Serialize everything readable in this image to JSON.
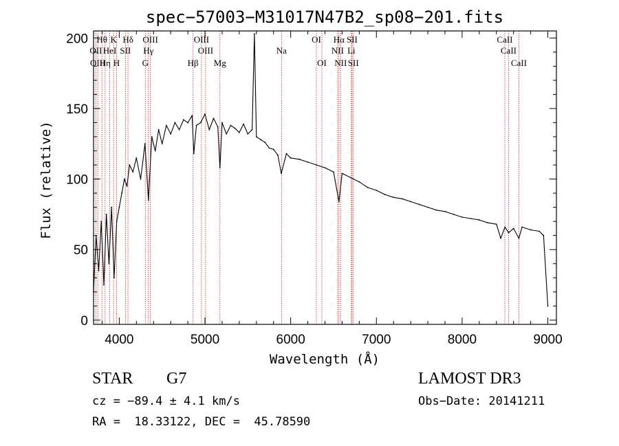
{
  "chart_data": {
    "type": "line",
    "title": "spec−57003−M31017N47B2_sp08−201.fits",
    "xlabel": "Wavelength (Å)",
    "ylabel": "Flux (relative)",
    "xlim": [
      3700,
      9100
    ],
    "ylim": [
      -3,
      205
    ],
    "xticks": [
      4000,
      5000,
      6000,
      7000,
      8000,
      9000
    ],
    "xtick_labels": [
      "4000",
      "5000",
      "6000",
      "7000",
      "8000",
      "9000"
    ],
    "yticks": [
      0,
      50,
      100,
      150,
      200
    ],
    "ytick_labels": [
      "0",
      "50",
      "100",
      "150",
      "200"
    ],
    "series": [
      {
        "name": "spectrum",
        "x": [
          3700,
          3730,
          3760,
          3790,
          3820,
          3850,
          3880,
          3910,
          3940,
          3970,
          4000,
          4030,
          4060,
          4090,
          4120,
          4160,
          4200,
          4250,
          4300,
          4340,
          4380,
          4420,
          4460,
          4500,
          4550,
          4600,
          4650,
          4700,
          4750,
          4800,
          4850,
          4870,
          4900,
          4950,
          5000,
          5050,
          5100,
          5150,
          5175,
          5200,
          5250,
          5300,
          5350,
          5400,
          5450,
          5500,
          5550,
          5577,
          5600,
          5650,
          5700,
          5750,
          5800,
          5850,
          5890,
          5950,
          6000,
          6100,
          6200,
          6300,
          6400,
          6500,
          6563,
          6600,
          6700,
          6800,
          6900,
          7000,
          7100,
          7200,
          7300,
          7400,
          7500,
          7600,
          7700,
          7800,
          7900,
          8000,
          8100,
          8200,
          8300,
          8400,
          8450,
          8500,
          8542,
          8600,
          8662,
          8700,
          8800,
          8900,
          8950,
          9000
        ],
        "y": [
          20,
          60,
          35,
          70,
          25,
          75,
          40,
          80,
          30,
          70,
          80,
          90,
          100,
          95,
          110,
          105,
          115,
          100,
          125,
          85,
          130,
          120,
          135,
          125,
          138,
          132,
          140,
          135,
          142,
          140,
          145,
          118,
          138,
          140,
          146,
          135,
          143,
          137,
          108,
          140,
          132,
          138,
          136,
          133,
          139,
          132,
          135,
          203,
          130,
          128,
          126,
          122,
          121,
          117,
          104,
          118,
          115,
          114,
          112,
          110,
          108,
          105,
          84,
          104,
          101,
          98,
          94,
          92,
          89,
          87,
          86,
          84,
          82,
          80,
          78,
          77,
          75,
          73,
          72,
          71,
          69,
          68,
          58,
          66,
          62,
          65,
          58,
          66,
          64,
          63,
          60,
          10
        ]
      }
    ],
    "emission_lines": [
      {
        "label": "Hθ",
        "wl": 3798,
        "row": 1
      },
      {
        "label": "K",
        "wl": 3934,
        "row": 1
      },
      {
        "label": "Hδ",
        "wl": 4102,
        "row": 1
      },
      {
        "label": "OIII",
        "wl": 4363,
        "row": 1
      },
      {
        "label": "OIII",
        "wl": 4959,
        "row": 1
      },
      {
        "label": "OI",
        "wl": 6300,
        "row": 1
      },
      {
        "label": "Hα",
        "wl": 6563,
        "row": 1
      },
      {
        "label": "SII",
        "wl": 6716,
        "row": 1
      },
      {
        "label": "CaII",
        "wl": 8498,
        "row": 1
      },
      {
        "label": "OII",
        "wl": 3727,
        "row": 2
      },
      {
        "label": "HeI",
        "wl": 3889,
        "row": 2
      },
      {
        "label": "SII",
        "wl": 4072,
        "row": 2
      },
      {
        "label": "Hγ",
        "wl": 4340,
        "row": 2
      },
      {
        "label": "OIII",
        "wl": 5007,
        "row": 2
      },
      {
        "label": "Na",
        "wl": 5893,
        "row": 2
      },
      {
        "label": "NII",
        "wl": 6548,
        "row": 2
      },
      {
        "label": "Li",
        "wl": 6708,
        "row": 2
      },
      {
        "label": "CaII",
        "wl": 8542,
        "row": 2
      },
      {
        "label": "OIII",
        "wl": 3750,
        "row": 3
      },
      {
        "label": "Hη",
        "wl": 3835,
        "row": 3
      },
      {
        "label": "H",
        "wl": 3968,
        "row": 3
      },
      {
        "label": "G",
        "wl": 4304,
        "row": 3
      },
      {
        "label": "Hβ",
        "wl": 4861,
        "row": 3
      },
      {
        "label": "Mg",
        "wl": 5175,
        "row": 3
      },
      {
        "label": "OI",
        "wl": 6364,
        "row": 3
      },
      {
        "label": "NII",
        "wl": 6583,
        "row": 3
      },
      {
        "label": "SII",
        "wl": 6731,
        "row": 3
      },
      {
        "label": "CaII",
        "wl": 8662,
        "row": 3
      }
    ]
  },
  "info": {
    "object_class": "STAR",
    "subclass": "G7",
    "survey": "LAMOST DR3",
    "cz": "cz = −89.4 ± 4.1 km/s",
    "obs_date": "Obs−Date: 20141211",
    "coords": "RA =  18.33122, DEC =  45.78590"
  },
  "colors": {
    "line_marker": "#cc2222",
    "spectrum": "#000000",
    "axes": "#000000"
  }
}
